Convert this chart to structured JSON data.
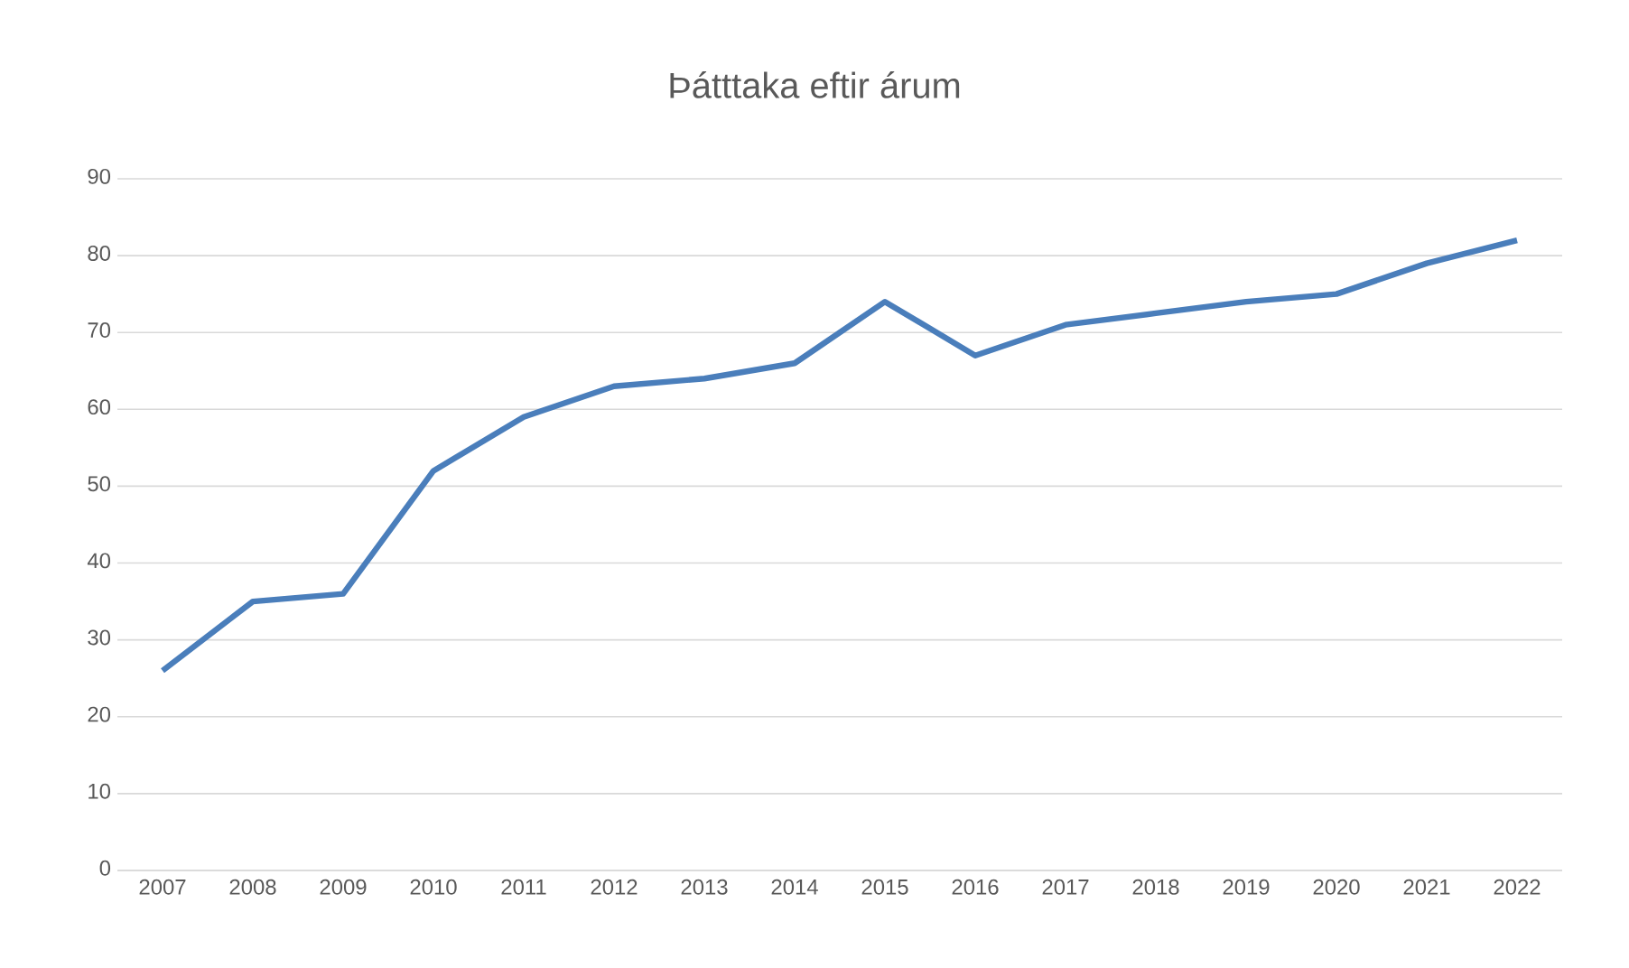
{
  "chart_data": {
    "type": "line",
    "title": "Þátttaka eftir árum",
    "categories": [
      "2007",
      "2008",
      "2009",
      "2010",
      "2011",
      "2012",
      "2013",
      "2014",
      "2015",
      "2016",
      "2017",
      "2018",
      "2019",
      "2020",
      "2021",
      "2022"
    ],
    "series": [
      {
        "color": "#4a7ebb",
        "values": [
          26,
          35,
          36,
          52,
          59,
          63,
          64,
          66,
          74,
          67,
          71,
          72.5,
          74,
          75,
          79,
          82
        ]
      }
    ],
    "ylim": [
      0,
      90
    ],
    "yticks": [
      0,
      10,
      20,
      30,
      40,
      50,
      60,
      70,
      80,
      90
    ],
    "grid": "y",
    "marker": "none",
    "line_style": "solid"
  }
}
